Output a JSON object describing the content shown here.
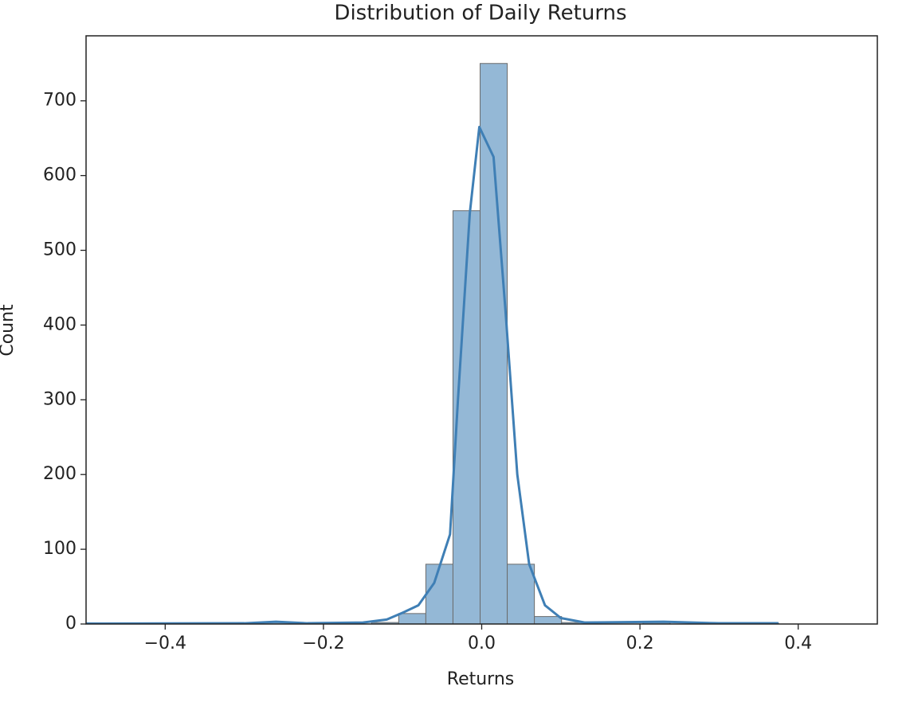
{
  "chart_data": {
    "type": "histogram",
    "title": "Distribution of Daily Returns",
    "x_label": "Returns",
    "y_label": "Count",
    "bins": [
      -0.4822,
      -0.4479,
      -0.4136,
      -0.3793,
      -0.345,
      -0.3107,
      -0.2764,
      -0.2421,
      -0.2078,
      -0.1735,
      -0.1392,
      -0.1049,
      -0.0706,
      -0.0363,
      -0.002,
      0.0323,
      0.0666,
      0.1009,
      0.1352,
      0.1695,
      0.2038,
      0.2381,
      0.2724,
      0.3067,
      0.341,
      0.3753
    ],
    "values": [
      1,
      0,
      0,
      0,
      0,
      0,
      3,
      0,
      0,
      0,
      2,
      14,
      80,
      553,
      750,
      80,
      10,
      2,
      0,
      0,
      2,
      0,
      0,
      0,
      1
    ],
    "color": "#94b8d6",
    "edge_color": "#6b6b6b",
    "kde": {
      "color": "#3f7fb5",
      "x": [
        -0.5,
        -0.3,
        -0.26,
        -0.22,
        -0.15,
        -0.12,
        -0.1,
        -0.08,
        -0.06,
        -0.04,
        -0.03,
        -0.015,
        -0.003,
        0.015,
        0.03,
        0.045,
        0.06,
        0.08,
        0.1,
        0.13,
        0.23,
        0.3,
        0.375
      ],
      "values": [
        0.5,
        1,
        3,
        1,
        2,
        6,
        15,
        25,
        55,
        120,
        300,
        550,
        665,
        625,
        420,
        200,
        80,
        25,
        8,
        2,
        3,
        1,
        1
      ]
    },
    "xlim": [
      -0.5,
      0.5
    ],
    "ylim": [
      0,
      787
    ],
    "xticks": [
      {
        "value": -0.4,
        "label": "−0.4"
      },
      {
        "value": -0.2,
        "label": "−0.2"
      },
      {
        "value": 0,
        "label": "0.0"
      },
      0.2,
      0.4
    ],
    "yticks": [
      0,
      100,
      200,
      300,
      400,
      500,
      600,
      700
    ],
    "grid": false
  }
}
